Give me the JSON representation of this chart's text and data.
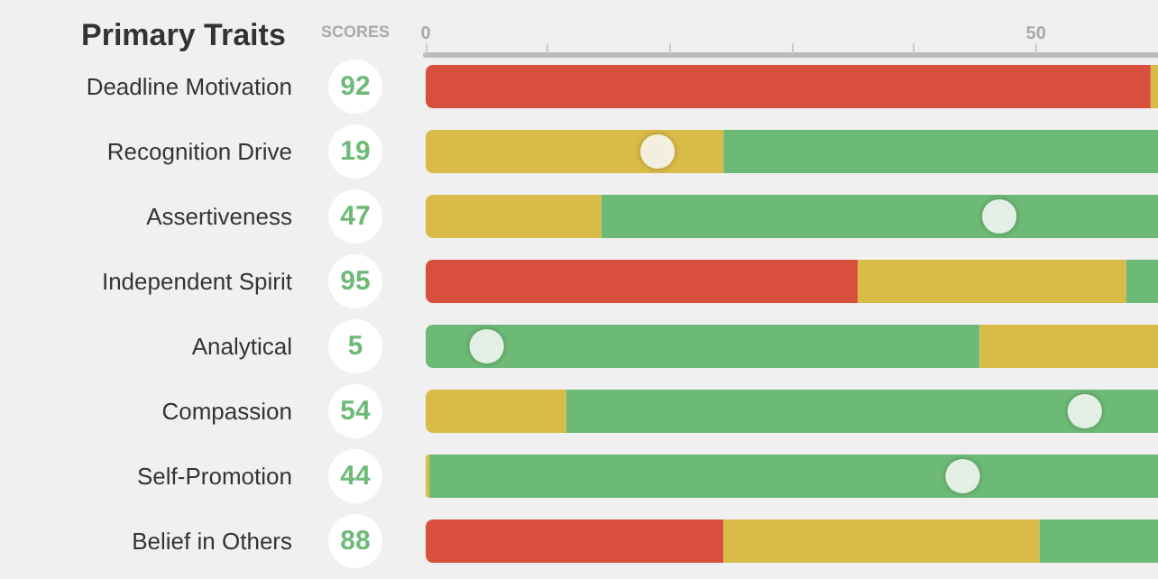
{
  "chart_data": {
    "type": "bar",
    "title": "Primary Traits",
    "annotations": [
      "SCORES"
    ],
    "orientation": "horizontal",
    "stacked": true,
    "categories": [
      "Deadline Motivation",
      "Recognition Drive",
      "Assertiveness",
      "Independent Spirit",
      "Analytical",
      "Compassion",
      "Self-Promotion",
      "Belief in Others"
    ],
    "xlim": [
      0,
      60
    ],
    "xticks": [
      0,
      {
        "value": 10,
        "label": null
      },
      {
        "value": 20,
        "label": null
      },
      {
        "value": 30,
        "label": null
      },
      {
        "value": 40,
        "label": null
      },
      50
    ],
    "series": [
      {
        "colors": [
          "#d94f3d",
          "#d9bb48",
          "#d9bb48",
          "#d94f3d",
          "#6dba77",
          "#d9bb48",
          "#d9bb48",
          "#d94f3d"
        ],
        "values": [
          59.4,
          24.4,
          14.4,
          35.4,
          45.4,
          11.5,
          0.3,
          24.4
        ]
      },
      {
        "colors": [
          "#d9bb48",
          "#6dba77",
          "#6dba77",
          "#d9bb48",
          "#d9bb48",
          "#6dba77",
          "#6dba77",
          "#d9bb48"
        ],
        "values": [
          0.6,
          35.6,
          45.6,
          22,
          14.6,
          48.5,
          59.7,
          25.9
        ]
      },
      {
        "colors": [
          "#6dba77",
          "#6dba77",
          "#6dba77",
          "#6dba77",
          "#6dba77",
          "#6dba77",
          "#6dba77",
          "#6dba77"
        ],
        "values": [
          null,
          null,
          null,
          2.6,
          null,
          null,
          null,
          9.7
        ]
      },
      {
        "type": "scatter",
        "marker": "circle",
        "color": "#ffffff",
        "values": [
          null,
          19,
          47,
          null,
          5,
          54,
          44,
          null
        ],
        "value_labels": [
          "92",
          "19",
          "47",
          "95",
          "5",
          "54",
          "44",
          "88"
        ]
      }
    ]
  }
}
